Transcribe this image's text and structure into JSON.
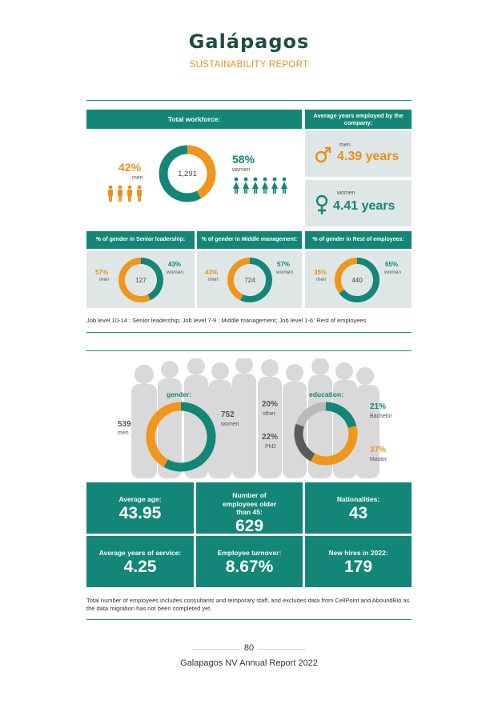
{
  "header": {
    "logo": "Galápagos",
    "subtitle": "SUSTAINABILITY REPORT"
  },
  "workforce": {
    "title": "Total workforce:",
    "total": "1,291",
    "men_pct": "42%",
    "men_label": "men",
    "women_pct": "58%",
    "women_label": "women"
  },
  "years_employed": {
    "title": "Average years employed by the company:",
    "men_label": "men",
    "men_value": "4.39 years",
    "women_label": "women",
    "women_value": "4.41 years"
  },
  "gender_panels": [
    {
      "title": "% of gender in Senior leadership:",
      "total": "127",
      "men_pct": "57%",
      "men_label": "men",
      "women_pct": "43%",
      "women_label": "women"
    },
    {
      "title": "% of gender in Middle management:",
      "total": "724",
      "men_pct": "43%",
      "men_label": "men",
      "women_pct": "57%",
      "women_label": "women"
    },
    {
      "title": "% of gender in Rest of employees:",
      "total": "440",
      "men_pct": "35%",
      "men_label": "men",
      "women_pct": "65%",
      "women_label": "women"
    }
  ],
  "job_levels_note": "Job level 10-14 : Senior leadership; Job level 7-9 : Middle management; Job level 1-6: Rest of employees",
  "gender_chart": {
    "title": "gender:",
    "men_value": "539",
    "men_label": "men",
    "women_value": "752",
    "women_label": "women"
  },
  "education_chart": {
    "title": "education:",
    "segments": [
      {
        "pct": "21%",
        "label": "Bachelor"
      },
      {
        "pct": "37%",
        "label": "Master"
      },
      {
        "pct": "22%",
        "label": "PhD"
      },
      {
        "pct": "20%",
        "label": "other"
      }
    ]
  },
  "stats": [
    {
      "label": "Average age:",
      "value": "43.95"
    },
    {
      "label": "Number of employees older than 45:",
      "value": "629"
    },
    {
      "label": "Nationalities:",
      "value": "43"
    },
    {
      "label": "Average years of service:",
      "value": "4.25"
    },
    {
      "label": "Employee turnover:",
      "value": "8.67%"
    },
    {
      "label": "New hires in 2022:",
      "value": "179"
    }
  ],
  "footnote": "Total number of employees includes consultants and temporary staff, and excludes data from CellPoint and AboundBio as the data migration has not been completed yet.",
  "footer": {
    "page_number": "80",
    "report_title": "Galapagos NV Annual Report 2022"
  },
  "chart_data": [
    {
      "type": "pie",
      "title": "Total workforce:",
      "categories": [
        "men",
        "women"
      ],
      "values": [
        42,
        58
      ]
    },
    {
      "type": "pie",
      "title": "% of gender in Senior leadership:",
      "categories": [
        "men",
        "women"
      ],
      "values": [
        57,
        43
      ]
    },
    {
      "type": "pie",
      "title": "% of gender in Middle management:",
      "categories": [
        "men",
        "women"
      ],
      "values": [
        43,
        57
      ]
    },
    {
      "type": "pie",
      "title": "% of gender in Rest of employees:",
      "categories": [
        "men",
        "women"
      ],
      "values": [
        35,
        65
      ]
    },
    {
      "type": "pie",
      "title": "gender:",
      "categories": [
        "men",
        "women"
      ],
      "values": [
        539,
        752
      ]
    },
    {
      "type": "pie",
      "title": "education:",
      "categories": [
        "Bachelor",
        "Master",
        "PhD",
        "other"
      ],
      "values": [
        21,
        37,
        22,
        20
      ]
    }
  ],
  "colors": {
    "teal": "#138677",
    "orange": "#f0961c",
    "dark_grey": "#5a5a5a",
    "light_grey": "#b9b9b9",
    "panel": "#dfe7e6",
    "logo": "#1d4e43"
  }
}
